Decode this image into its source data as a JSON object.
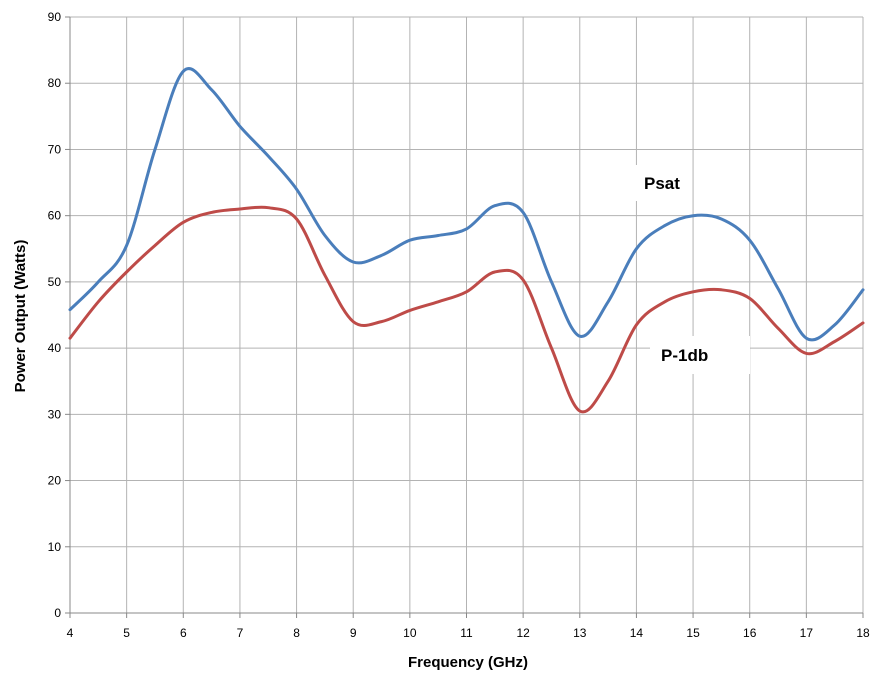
{
  "chart_data": {
    "type": "line",
    "title": "",
    "xlabel": "Frequency (GHz)",
    "ylabel": "Power Output (Watts)",
    "xlim": [
      4,
      18
    ],
    "ylim": [
      0,
      90
    ],
    "x_ticks": [
      4,
      5,
      6,
      7,
      8,
      9,
      10,
      11,
      12,
      13,
      14,
      15,
      16,
      17,
      18
    ],
    "y_ticks": [
      0,
      10,
      20,
      30,
      40,
      50,
      60,
      70,
      80,
      90
    ],
    "grid": true,
    "legend": "none",
    "series": [
      {
        "name": "Psat",
        "color": "#4a7ebb",
        "x": [
          4,
          4.5,
          5,
          5.5,
          6,
          6.5,
          7,
          7.5,
          8,
          8.5,
          9,
          9.5,
          10,
          10.5,
          11,
          11.5,
          12,
          12.5,
          13,
          13.5,
          14,
          14.5,
          15,
          15.5,
          16,
          16.5,
          17,
          17.5,
          18
        ],
        "values": [
          45.8,
          50,
          55.5,
          70,
          81.8,
          79,
          73.5,
          69,
          64,
          57,
          53,
          54,
          56.3,
          57,
          58,
          61.5,
          60.5,
          50,
          41.8,
          47,
          55,
          58.5,
          60,
          59.5,
          56.3,
          49,
          41.5,
          43.5,
          48.8
        ]
      },
      {
        "name": "P-1db",
        "color": "#be4b48",
        "x": [
          4,
          4.5,
          5,
          5.5,
          6,
          6.5,
          7,
          7.5,
          8,
          8.5,
          9,
          9.5,
          10,
          10.5,
          11,
          11.5,
          12,
          12.5,
          13,
          13.5,
          14,
          14.5,
          15,
          15.5,
          16,
          16.5,
          17,
          17.5,
          18
        ],
        "values": [
          41.5,
          47,
          51.5,
          55.5,
          59,
          60.5,
          61,
          61.2,
          59.5,
          51,
          44,
          44,
          45.7,
          47,
          48.5,
          51.5,
          50.3,
          40,
          30.5,
          35,
          43.5,
          47,
          48.5,
          48.8,
          47.5,
          43,
          39.2,
          41,
          43.8
        ]
      }
    ],
    "annotations": [
      {
        "text": "Psat",
        "series": "Psat"
      },
      {
        "text": "P-1db",
        "series": "P-1db"
      }
    ]
  }
}
